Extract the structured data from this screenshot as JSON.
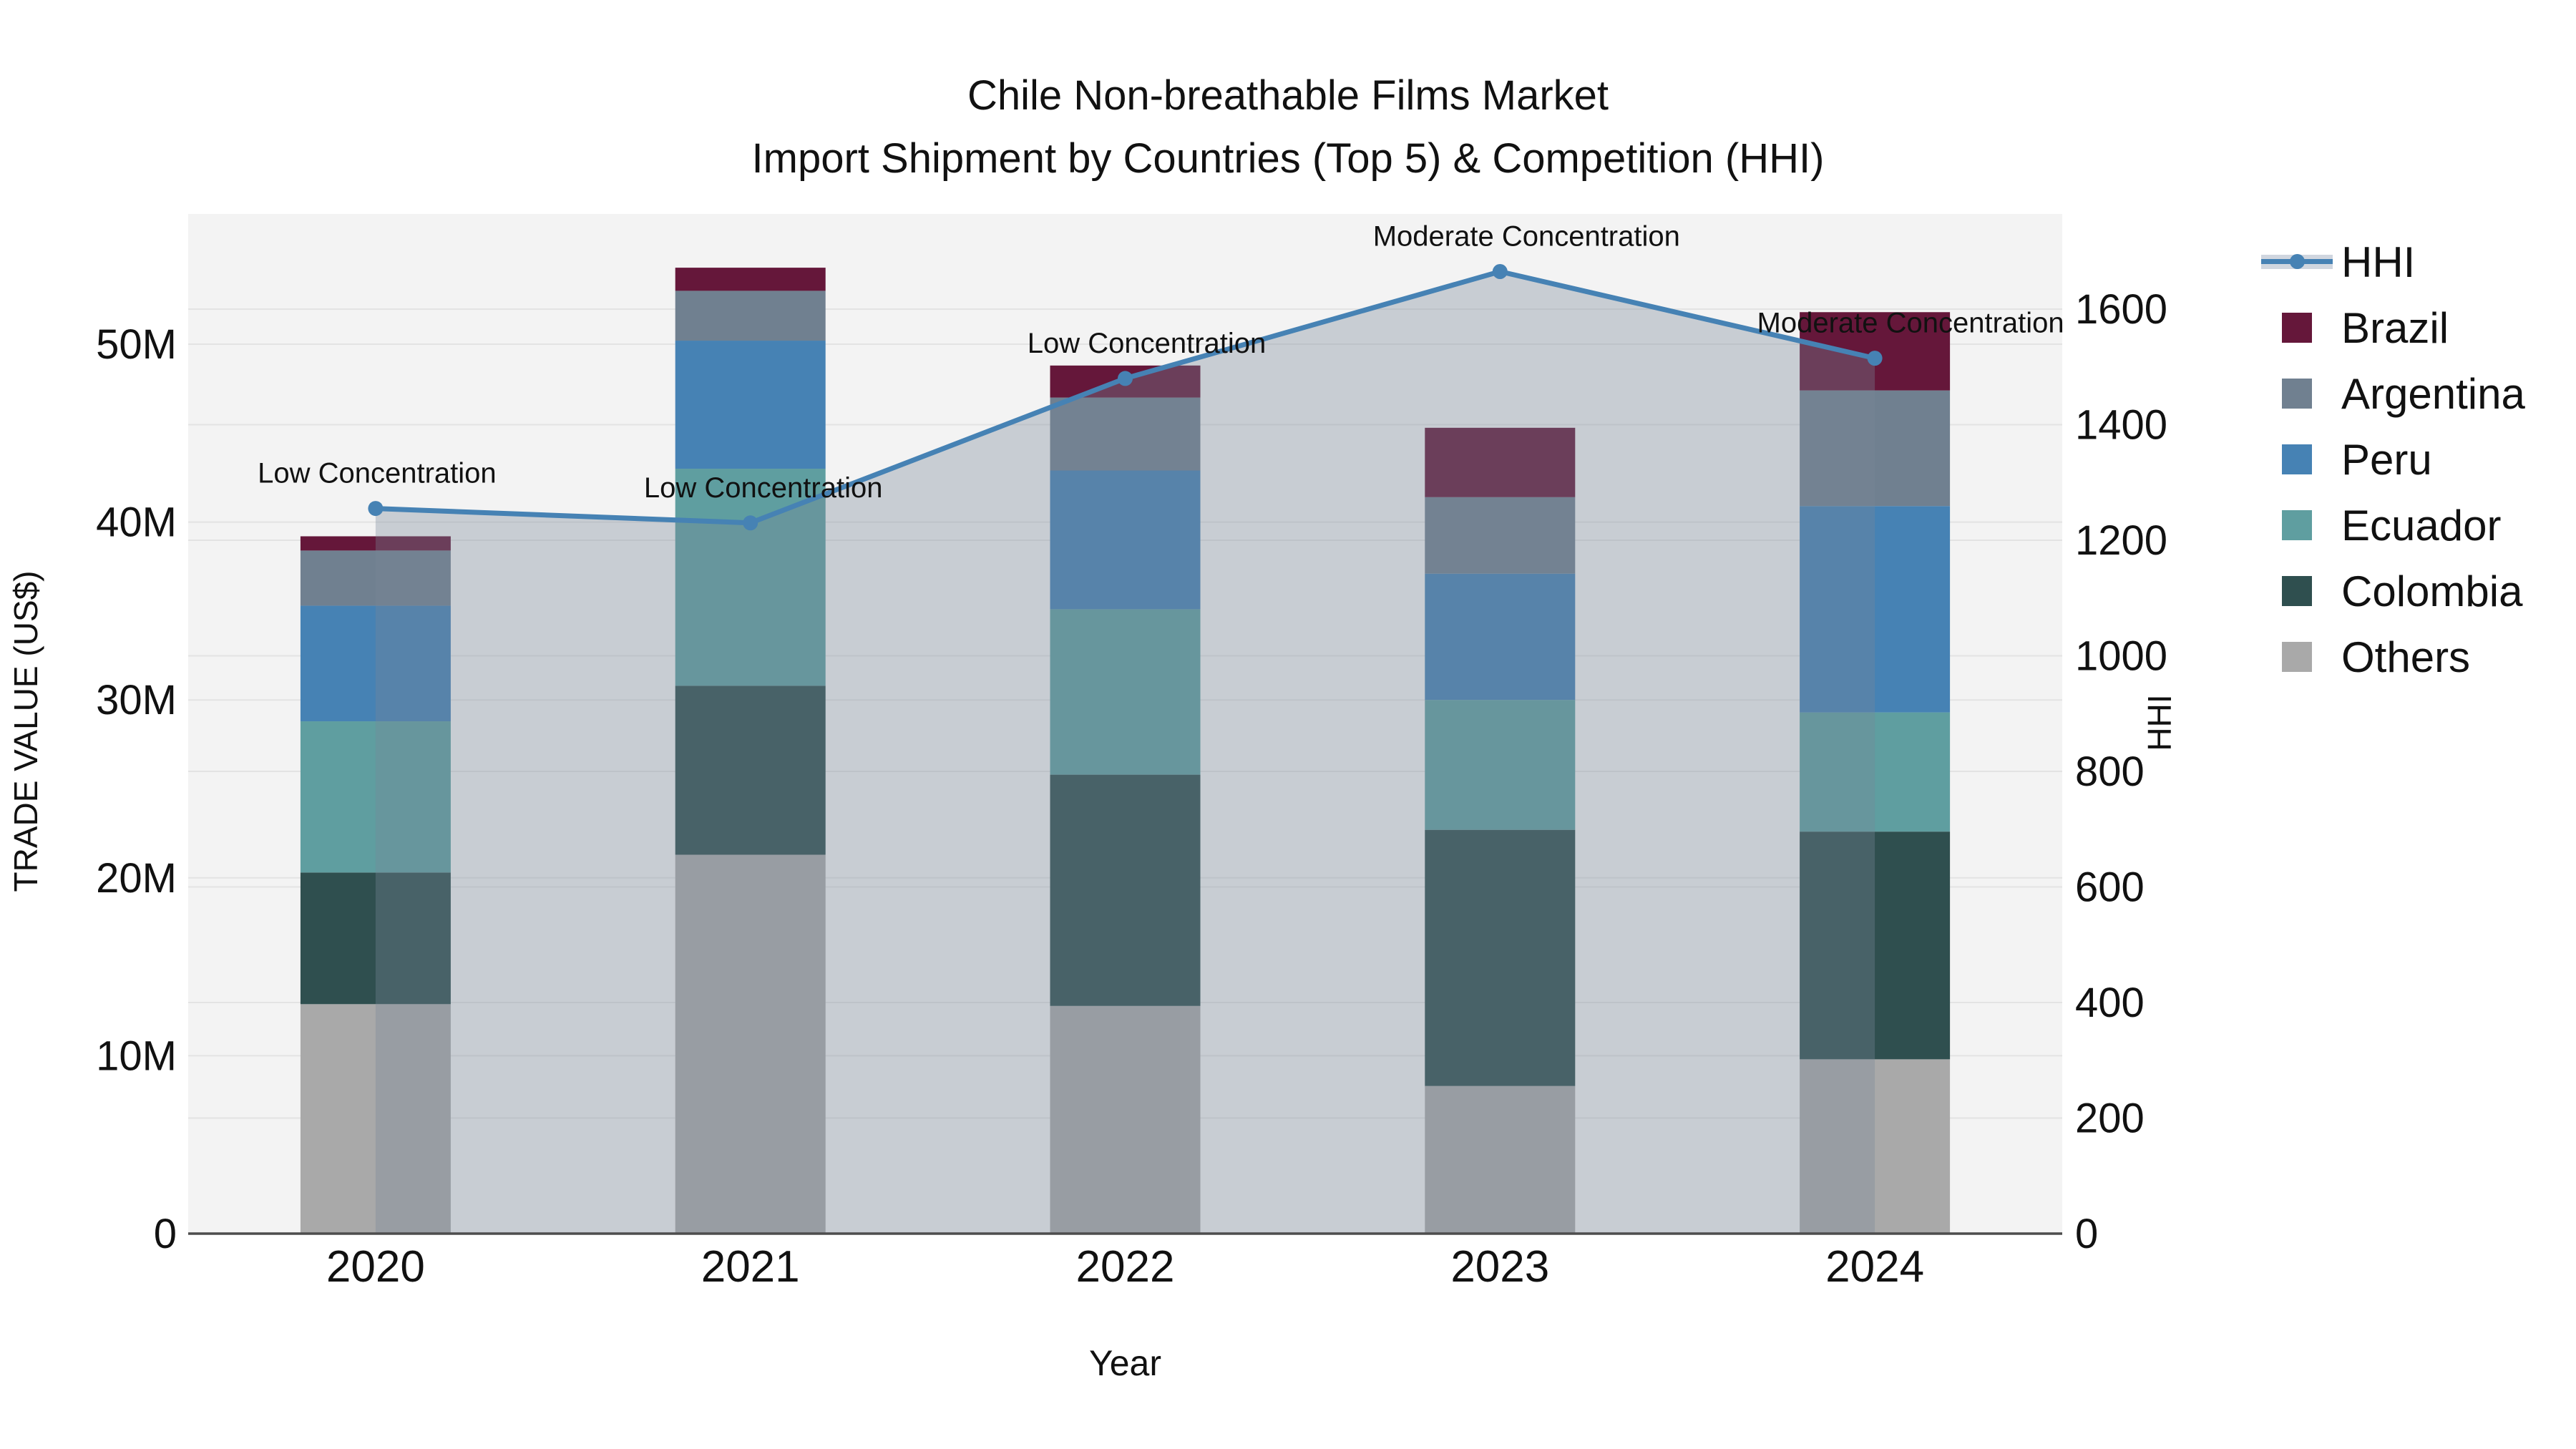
{
  "title": {
    "line1": "Chile Non-breathable Films Market",
    "line2": "Import Shipment by Countries (Top 5) & Competition (HHI)"
  },
  "chart_data": {
    "type": "combo-stacked-bar-line",
    "title": "Chile Non-breathable Films Market",
    "subtitle": "Import Shipment by Countries (Top 5) & Competition (HHI)",
    "categories": [
      "2020",
      "2021",
      "2022",
      "2023",
      "2024"
    ],
    "xlabel": "Year",
    "y_left": {
      "label": "TRADE VALUE (US$)",
      "tick_labels": [
        "0",
        "10M",
        "20M",
        "30M",
        "40M",
        "50M"
      ],
      "tick_values_musd": [
        0,
        10,
        20,
        30,
        40,
        50
      ],
      "range_musd": [
        0,
        57.2
      ],
      "grid": true
    },
    "y_right": {
      "label": "HHI",
      "tick_labels": [
        "0",
        "200",
        "400",
        "600",
        "800",
        "1000",
        "1200",
        "1400",
        "1600"
      ],
      "tick_values": [
        0,
        200,
        400,
        600,
        800,
        1000,
        1200,
        1400,
        1600
      ],
      "range": [
        0,
        1765
      ],
      "grid": true
    },
    "bar_unit": "million US$",
    "stack_order_bottom_to_top": [
      "Others",
      "Colombia",
      "Ecuador",
      "Peru",
      "Argentina",
      "Brazil"
    ],
    "bar_series": [
      {
        "name": "Others",
        "color": "#A9A9A9",
        "values_musd": [
          12.9,
          21.3,
          12.8,
          8.3,
          9.8
        ]
      },
      {
        "name": "Colombia",
        "color": "#2F4F4F",
        "values_musd": [
          7.4,
          9.5,
          13.0,
          14.4,
          12.8
        ]
      },
      {
        "name": "Ecuador",
        "color": "#5F9EA0",
        "values_musd": [
          8.5,
          12.2,
          9.3,
          7.3,
          6.7
        ]
      },
      {
        "name": "Peru",
        "color": "#4682B4",
        "values_musd": [
          6.5,
          7.2,
          7.8,
          7.1,
          11.6
        ]
      },
      {
        "name": "Argentina",
        "color": "#708090",
        "values_musd": [
          3.1,
          2.8,
          4.1,
          4.3,
          6.5
        ]
      },
      {
        "name": "Brazil",
        "color": "#65173A",
        "values_musd": [
          0.8,
          1.3,
          1.8,
          3.9,
          4.4
        ]
      }
    ],
    "bar_totals_musd": [
      39.2,
      54.3,
      48.8,
      45.3,
      51.8
    ],
    "line_series": {
      "name": "HHI",
      "color": "#4682B4",
      "area_fill": "rgba(119,136,153,0.35)",
      "values": [
        1255,
        1230,
        1480,
        1665,
        1515
      ],
      "point_annotations": [
        "Low Concentration",
        "Low Concentration",
        "Low Concentration",
        "Moderate Concentration",
        "Moderate Concentration"
      ]
    },
    "legend": {
      "items": [
        {
          "name": "HHI",
          "type": "line"
        },
        {
          "name": "Brazil",
          "type": "swatch",
          "color": "#65173A"
        },
        {
          "name": "Argentina",
          "type": "swatch",
          "color": "#708090"
        },
        {
          "name": "Peru",
          "type": "swatch",
          "color": "#4682B4"
        },
        {
          "name": "Ecuador",
          "type": "swatch",
          "color": "#5F9EA0"
        },
        {
          "name": "Colombia",
          "type": "swatch",
          "color": "#2F4F4F"
        },
        {
          "name": "Others",
          "type": "swatch",
          "color": "#A9A9A9"
        }
      ],
      "position": "right"
    }
  },
  "colors": {
    "panel": "#f3f3f3",
    "grid": "#e3e3e3",
    "axis_line": "#4d4d4d",
    "text": "#111111",
    "hhi_line": "#4682B4",
    "hhi_area": "rgba(119,136,153,0.35)"
  }
}
